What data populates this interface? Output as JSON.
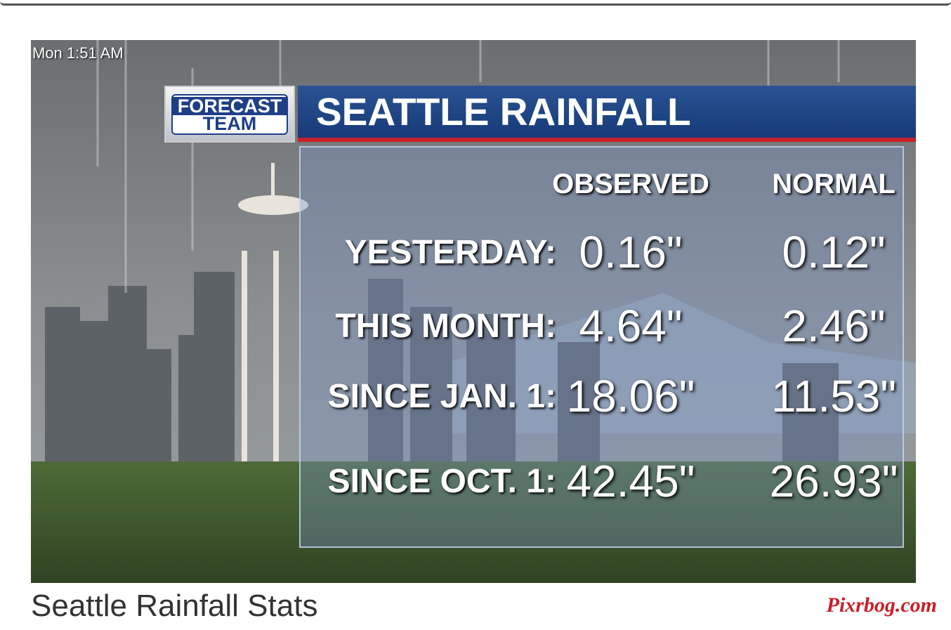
{
  "screen": {
    "timestamp": "Mon  1:51 AM",
    "logo": {
      "line1": "FORECAST",
      "line2": "TEAM"
    },
    "title": "SEATTLE RAINFALL",
    "table": {
      "columns": [
        "OBSERVED",
        "NORMAL"
      ],
      "rows": [
        {
          "label": "YESTERDAY:",
          "observed": "0.16\"",
          "normal": "0.12\""
        },
        {
          "label": "THIS MONTH:",
          "observed": "4.64\"",
          "normal": "2.46\""
        },
        {
          "label": "SINCE JAN. 1:",
          "observed": "18.06\"",
          "normal": "11.53\""
        },
        {
          "label": "SINCE OCT. 1:",
          "observed": "42.45\"",
          "normal": "26.93\""
        }
      ]
    },
    "caption": "Seattle Rainfall Stats",
    "watermark": "Pixrbog.com"
  }
}
